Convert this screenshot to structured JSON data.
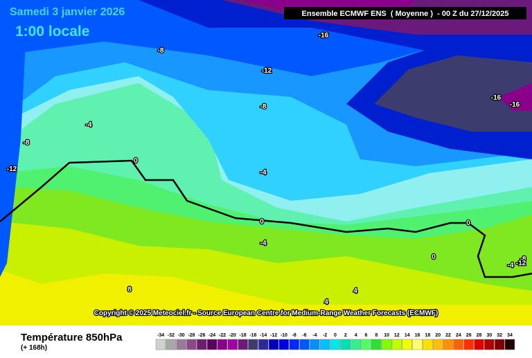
{
  "header": {
    "date": "Samedi 3 janvier 2026",
    "time": "1:00 locale",
    "model": "Ensemble ECMWF ENS  ( Moyenne )  - 00 Z du 27/12/2025"
  },
  "copyright": "Copyright © 2025 Meteociel.fr - Source European Centre for Medium-Range Weather Forecasts (ECMWF)",
  "contour_labels": [
    "-16",
    "-8",
    "-12",
    "-8",
    "-16",
    "-16",
    "-4",
    "-8",
    "-12",
    "0",
    "-4",
    "0",
    "-4",
    "0",
    "0",
    "-4",
    "-8",
    "-12",
    "8",
    "4",
    "4"
  ],
  "footer": {
    "title": "Température 850hPa",
    "subtitle": "(+ 168h)"
  },
  "scale": {
    "values": [
      -34,
      -32,
      -30,
      -28,
      -26,
      -24,
      -22,
      -20,
      -18,
      -16,
      -14,
      -12,
      -10,
      -8,
      -6,
      -4,
      -2,
      0,
      2,
      4,
      6,
      8,
      10,
      12,
      14,
      16,
      18,
      20,
      22,
      24,
      26,
      28,
      30,
      32,
      34
    ],
    "colors": [
      "#d0d0d0",
      "#a8a8a8",
      "#9a7a9a",
      "#8a4a8a",
      "#6e1e6e",
      "#5a005a",
      "#8a008a",
      "#a000a0",
      "#6a1a7a",
      "#3c3c6e",
      "#2a2a9a",
      "#0000b8",
      "#0000e0",
      "#0028ff",
      "#0058ff",
      "#0090ff",
      "#00c0ff",
      "#00e8e8",
      "#00e0b0",
      "#30f090",
      "#50ff60",
      "#30e030",
      "#80ff00",
      "#c0ff00",
      "#f0ff00",
      "#ffff70",
      "#ffe000",
      "#ffc000",
      "#ff9000",
      "#ff6000",
      "#ff3000",
      "#e00000",
      "#b00000",
      "#800000",
      "#200000"
    ]
  }
}
